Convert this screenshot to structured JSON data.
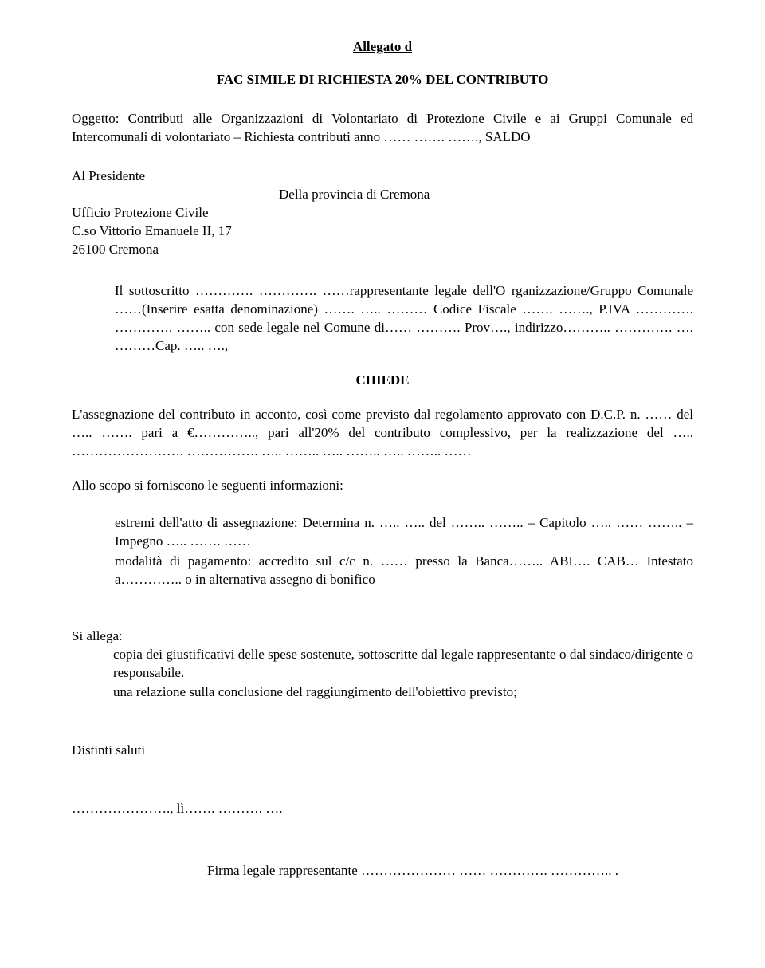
{
  "header": {
    "allegato": "Allegato d",
    "title": "FAC SIMILE DI RICHIESTA 20% DEL CONTRIBUTO"
  },
  "subject": "Oggetto: Contributi alle Organizzazioni di Volontariato di Protezione Civile e ai Gruppi Comunale ed Intercomunali di volontariato – Richiesta contributi anno …… ……. ……., SALDO",
  "recipient": {
    "line1": "Al Presidente",
    "line2": "Della provincia di Cremona",
    "line3": "Ufficio Protezione Civile",
    "line4": "C.so Vittorio Emanuele II, 17",
    "line5": "26100 Cremona"
  },
  "body": {
    "sottoscritto": "Il sottoscritto …………. …………. ……rappresentante legale dell'O rganizzazione/Gruppo Comunale ……(Inserire esatta denominazione) ……. ….. ……… Codice Fiscale ……. ……., P.IVA …………. …………. …….. con sede legale nel Comune di…… ………. Prov…., indirizzo……….. …………. …. ………Cap. ….. ….,"
  },
  "chiede": "CHIEDE",
  "request": "L'assegnazione del contributo in acconto, così come previsto dal regolamento approvato con D.C.P. n. …… del ….. ……. pari a €………….., pari all'20% del contributo complessivo,  per la realizzazione del ….. ……………………. ……………. ….. …….. ….. …….. ….. …….. ……",
  "info_intro": "Allo scopo si forniscono le seguenti informazioni:",
  "info": {
    "item1": "estremi dell'atto di assegnazione: Determina n. ….. ….. del …….. …….. – Capitolo ….. ……        …….. – Impegno ….. ……. ……",
    "item2": "modalità di pagamento: accredito sul c/c n. …… presso la Banca…….. ABI…. CAB… Intestato a………….. o in alternativa assegno di bonifico"
  },
  "allega": {
    "label": "Si allega:",
    "item1": "copia dei giustificativi delle spese sostenute, sottoscritte dal legale rappresentante o dal sindaco/dirigente o responsabile.",
    "item2": "una relazione sulla conclusione del raggiungimento dell'obiettivo previsto;"
  },
  "closing": {
    "saluti": "Distinti saluti",
    "date": "…………………., lì……. ………. ….",
    "firma": "Firma legale rappresentante ………………… …… …………. ………….. ."
  }
}
